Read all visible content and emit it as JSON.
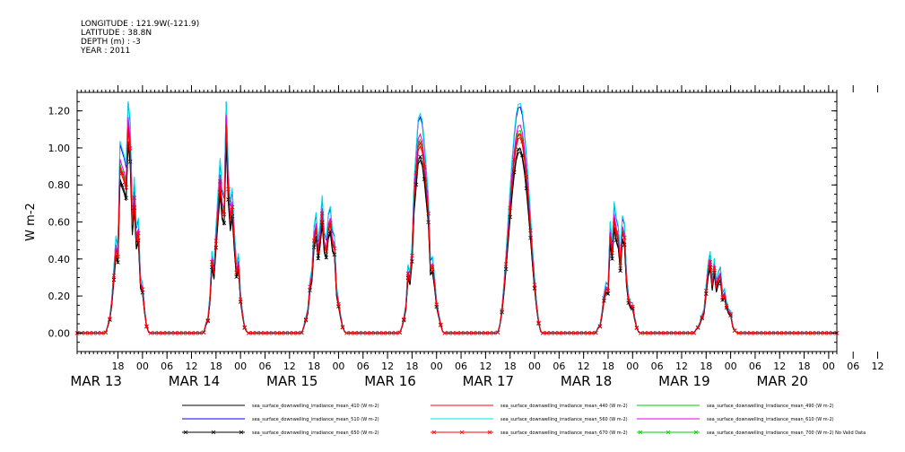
{
  "header": {
    "lines": [
      "LONGITUDE : 121.9W(-121.9)",
      "LATITUDE : 38.8N",
      "DEPTH (m) : -3",
      "YEAR : 2011"
    ]
  },
  "chart_data": {
    "type": "line",
    "ylabel": "W m-2",
    "xlabel": "",
    "ylim": [
      -0.1,
      1.3
    ],
    "yticks": [
      "0.00",
      "0.20",
      "0.40",
      "0.60",
      "0.80",
      "1.00",
      "1.20"
    ],
    "xticks_hours": [
      "18",
      "00",
      "06",
      "12",
      "18",
      "00",
      "06",
      "12",
      "18",
      "00",
      "06",
      "12",
      "18",
      "00",
      "06",
      "12",
      "18",
      "00",
      "06",
      "12",
      "18",
      "00",
      "06",
      "12",
      "18",
      "00",
      "06",
      "12",
      "18",
      "00",
      "06",
      "12"
    ],
    "date_labels": [
      "MAR 13",
      "MAR 14",
      "MAR 15",
      "MAR 16",
      "MAR 17",
      "MAR 18",
      "MAR 19",
      "MAR 20"
    ],
    "x_start": "2011-03-13T08:00",
    "x_end": "2011-03-21T02:00",
    "days": [
      "2011-03-13",
      "2011-03-14",
      "2011-03-15",
      "2011-03-16",
      "2011-03-17",
      "2011-03-18",
      "2011-03-19"
    ],
    "day_peaks": [
      1.0,
      0.9,
      0.72,
      0.85,
      0.98,
      0.55,
      0.38
    ],
    "legend": [
      {
        "name": "sea_surface_downwelling_irradiance_mean_410 (W m-2)",
        "color": "#000000",
        "scale": 1.0,
        "marker": "none"
      },
      {
        "name": "sea_surface_downwelling_irradiance_mean_440 (W m-2)",
        "color": "#ff0000",
        "scale": 1.08,
        "marker": "none"
      },
      {
        "name": "sea_surface_downwelling_irradiance_mean_490 (W m-2)",
        "color": "#00cc00",
        "scale": 1.12,
        "marker": "none"
      },
      {
        "name": "sea_surface_downwelling_irradiance_mean_510 (W m-2)",
        "color": "#0000ff",
        "scale": 1.25,
        "marker": "none"
      },
      {
        "name": "sea_surface_downwelling_irradiance_mean_560 (W m-2)",
        "color": "#00e0e0",
        "scale": 1.27,
        "marker": "none"
      },
      {
        "name": "sea_surface_downwelling_irradiance_mean_610 (W m-2)",
        "color": "#e000e0",
        "scale": 1.15,
        "marker": "none"
      },
      {
        "name": "sea_surface_downwelling_irradiance_mean_650 (W m-2)",
        "color": "#000000",
        "scale": 1.02,
        "marker": "x"
      },
      {
        "name": "sea_surface_downwelling_irradiance_mean_670 (W m-2)",
        "color": "#ff0000",
        "scale": 1.1,
        "marker": "x"
      },
      {
        "name": "sea_surface_downwelling_irradiance_mean_700 (W m-2) No Valid Data",
        "color": "#00cc00",
        "scale": 0,
        "marker": "x"
      }
    ]
  }
}
